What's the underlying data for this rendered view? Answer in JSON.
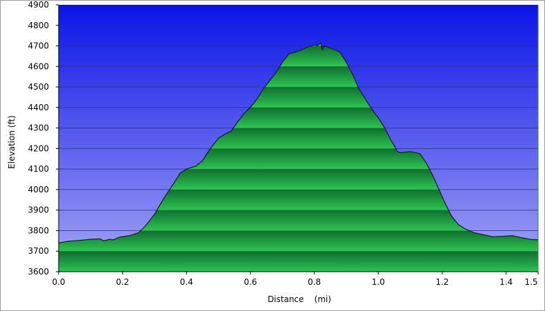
{
  "chart_data": {
    "type": "area",
    "title": "",
    "xlabel": "Distance    (mi)",
    "ylabel": "Elevation (ft)",
    "xlim": [
      0.0,
      1.5
    ],
    "ylim": [
      3600,
      4900
    ],
    "x_ticks": [
      0.0,
      0.2,
      0.4,
      0.6,
      0.8,
      1.0,
      1.2,
      1.4,
      1.5
    ],
    "x_tick_labels": [
      "0.0",
      "0.2",
      "0.4",
      "0.6",
      "0.8",
      "1.0",
      "1.2",
      "1.4",
      "1.5"
    ],
    "y_ticks": [
      3600,
      3700,
      3800,
      3900,
      4000,
      4100,
      4200,
      4300,
      4400,
      4500,
      4600,
      4700,
      4800,
      4900
    ],
    "y_tick_labels": [
      "3600",
      "3700",
      "3800",
      "3900",
      "4000",
      "4100",
      "4200",
      "4300",
      "4400",
      "4500",
      "4600",
      "4700",
      "4800",
      "4900"
    ],
    "grid": true,
    "legend": "none",
    "colors": {
      "background_top": "#0a14e6",
      "background_bottom": "#a6a6f5",
      "fill_dark": "#0f6e30",
      "fill_light": "#2ec452",
      "outline": "#1a1a1a",
      "grid": "#2c2c7a"
    },
    "series": [
      {
        "x": [
          0.0,
          0.03,
          0.06,
          0.1,
          0.13,
          0.14,
          0.16,
          0.17,
          0.19,
          0.22,
          0.25,
          0.27,
          0.3,
          0.33,
          0.36,
          0.38,
          0.4,
          0.43,
          0.45,
          0.47,
          0.5,
          0.52,
          0.54,
          0.56,
          0.58,
          0.6,
          0.62,
          0.64,
          0.66,
          0.68,
          0.7,
          0.72,
          0.74,
          0.76,
          0.78,
          0.8,
          0.81,
          0.82,
          0.825,
          0.83,
          0.85,
          0.88,
          0.9,
          0.92,
          0.94,
          0.96,
          0.98,
          1.0,
          1.02,
          1.04,
          1.06,
          1.07,
          1.1,
          1.13,
          1.15,
          1.17,
          1.19,
          1.21,
          1.23,
          1.25,
          1.27,
          1.3,
          1.33,
          1.36,
          1.38,
          1.42,
          1.45,
          1.48,
          1.5
        ],
        "y": [
          3740,
          3748,
          3752,
          3758,
          3760,
          3750,
          3758,
          3755,
          3768,
          3775,
          3790,
          3820,
          3880,
          3960,
          4030,
          4080,
          4100,
          4115,
          4140,
          4190,
          4250,
          4270,
          4285,
          4330,
          4370,
          4400,
          4440,
          4490,
          4530,
          4570,
          4620,
          4660,
          4670,
          4680,
          4695,
          4705,
          4700,
          4715,
          4680,
          4700,
          4690,
          4670,
          4620,
          4560,
          4490,
          4440,
          4390,
          4350,
          4300,
          4240,
          4185,
          4180,
          4185,
          4175,
          4130,
          4070,
          4000,
          3930,
          3870,
          3830,
          3810,
          3790,
          3780,
          3770,
          3772,
          3775,
          3765,
          3757,
          3756
        ]
      }
    ]
  }
}
